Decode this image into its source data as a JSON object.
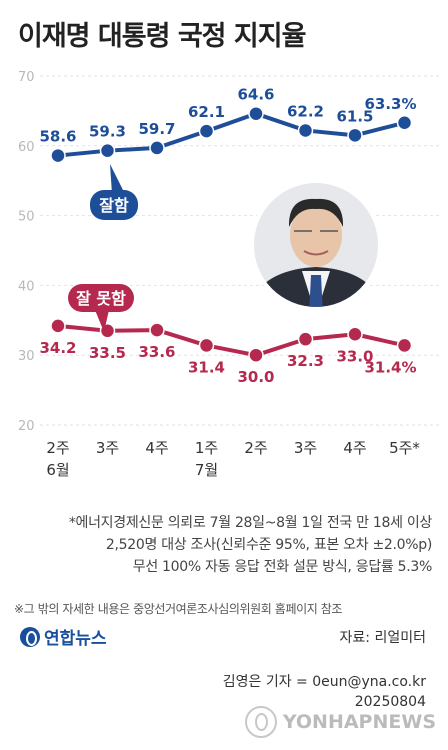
{
  "title": "이재명 대통령 국정 지지율",
  "chart_data": {
    "type": "line",
    "categories": [
      "2주\n6월",
      "3주",
      "4주",
      "1주\n7월",
      "2주",
      "3주",
      "4주",
      "5주*"
    ],
    "ylim": [
      20,
      70
    ],
    "yticks": [
      20,
      30,
      40,
      50,
      60,
      70
    ],
    "series": [
      {
        "name": "잘함",
        "values": [
          58.6,
          59.3,
          59.7,
          62.1,
          64.6,
          62.2,
          61.5,
          63.3
        ],
        "labels": [
          "58.6",
          "59.3",
          "59.7",
          "62.1",
          "64.6",
          "62.2",
          "61.5",
          "63.3%"
        ],
        "color": "#1f4e99"
      },
      {
        "name": "잘 못함",
        "values": [
          34.2,
          33.5,
          33.6,
          31.4,
          30.0,
          32.3,
          33.0,
          31.4
        ],
        "labels": [
          "34.2",
          "33.5",
          "33.6",
          "31.4",
          "30.0",
          "32.3",
          "33.0",
          "31.4%"
        ],
        "color": "#b5294f"
      }
    ],
    "grid": true
  },
  "notes": [
    "*에너지경제신문 의뢰로 7월 28일~8월 1일 전국 만 18세 이상",
    "2,520명 대상 조사(신뢰수준 95%, 표본 오차 ±2.0%p)",
    "무선 100% 자동 응답 전화 설문 방식, 응답률 5.3%"
  ],
  "footnote": "※그 밖의 자세한 내용은 중앙선거여론조사심의위원회 홈페이지 참조",
  "logo": "연합뉴스",
  "source": "자료: 리얼미터",
  "byline": [
    "김영은 기자 = 0eun@yna.co.kr",
    "20250804"
  ],
  "watermark": "YONHAPNEWS"
}
